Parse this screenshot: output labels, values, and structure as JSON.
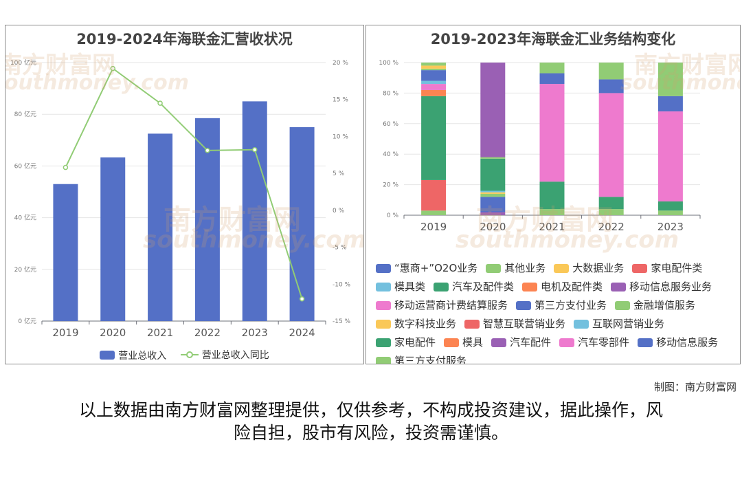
{
  "chart_data": [
    {
      "type": "bar",
      "title": "2019-2024年海联金汇营收状况",
      "categories": [
        "2019",
        "2020",
        "2021",
        "2022",
        "2023",
        "2024"
      ],
      "series": [
        {
          "name": "营业总收入",
          "type": "bar",
          "axis": "left",
          "values": [
            53,
            63.3,
            72.5,
            78.5,
            85,
            75
          ]
        },
        {
          "name": "营业总收入同比",
          "type": "line",
          "axis": "right",
          "values": [
            5.8,
            19.2,
            14.5,
            8.1,
            8.2,
            -12
          ]
        }
      ],
      "yticks_left": [
        "0 亿元",
        "20 亿元",
        "40 亿元",
        "60 亿元",
        "80 亿元",
        "100 亿元"
      ],
      "yticks_right": [
        "-15 %",
        "-10 %",
        "-5 %",
        "0 %",
        "5 %",
        "10 %",
        "15 %",
        "20 %"
      ],
      "ylim_left": [
        0,
        100
      ],
      "ylim_right": [
        -15,
        20
      ],
      "grid": true,
      "legend_position": "bottom",
      "colors": {
        "bar": "#5470c6",
        "line": "#91cc75"
      }
    },
    {
      "type": "bar",
      "stacked": true,
      "title": "2019-2023年海联金汇业务结构变化",
      "categories": [
        "2019",
        "2020",
        "2021",
        "2022",
        "2023"
      ],
      "yticks": [
        "0 %",
        "20 %",
        "40 %",
        "60 %",
        "80 %",
        "100 %"
      ],
      "ylim": [
        0,
        100
      ],
      "grid": true,
      "legend_position": "bottom",
      "series": [
        {
          "name": "第三方支付服务",
          "color": "#91cc75",
          "values": [
            0,
            0,
            0,
            0,
            3
          ]
        },
        {
          "name": "移动信息服务",
          "color": "#5470c6",
          "values": [
            0,
            0,
            0,
            0,
            0
          ]
        },
        {
          "name": "汽车零部件",
          "color": "#ee7ace",
          "values": [
            0,
            0,
            0,
            0,
            0
          ]
        },
        {
          "name": "汽车配件",
          "color": "#9a60b4",
          "values": [
            0,
            0,
            0,
            0,
            0
          ]
        },
        {
          "name": "模具",
          "color": "#fc8452",
          "values": [
            0,
            0,
            0,
            0,
            0
          ]
        },
        {
          "name": "家电配件",
          "color": "#3ba272",
          "values": [
            0,
            0,
            0,
            0,
            6
          ]
        },
        {
          "name": "互联网营销业务",
          "color": "#73c0de",
          "values": [
            0,
            0,
            0,
            0,
            0
          ]
        },
        {
          "name": "智慧互联营销业务",
          "color": "#ee6666",
          "values": [
            0,
            0,
            0,
            0,
            0
          ]
        },
        {
          "name": "数字科技业务",
          "color": "#fac858",
          "values": [
            0,
            0,
            0,
            0,
            0
          ]
        },
        {
          "name": "金融增值服务",
          "color": "#91cc75",
          "values": [
            0,
            0,
            0,
            0,
            0
          ]
        },
        {
          "name": "第三方支付业务",
          "color": "#5470c6",
          "values": [
            0,
            0,
            0,
            0,
            0
          ]
        },
        {
          "name": "移动运营商计费结算服务",
          "color": "#ee7ace",
          "values": [
            0,
            0,
            0,
            0,
            0
          ]
        },
        {
          "name": "移动信息服务业务",
          "color": "#9a60b4",
          "values": [
            0,
            0,
            0,
            0,
            0
          ]
        },
        {
          "name": "电机及配件类",
          "color": "#fc8452",
          "values": [
            0,
            0,
            0,
            0,
            0
          ]
        },
        {
          "name": "汽车及配件类",
          "color": "#3ba272",
          "values": [
            0,
            0,
            0,
            0,
            0
          ]
        },
        {
          "name": "模具类",
          "color": "#73c0de",
          "values": [
            0,
            0,
            0,
            0,
            0
          ]
        },
        {
          "name": "家电配件类",
          "color": "#ee6666",
          "values": [
            0,
            0,
            0,
            0,
            0
          ]
        },
        {
          "name": "大数据业务",
          "color": "#fac858",
          "values": [
            0,
            0,
            0,
            0,
            0
          ]
        },
        {
          "name": "其他业务",
          "color": "#91cc75",
          "values": [
            0,
            0,
            0,
            0,
            0
          ]
        },
        {
          "name": "“惠商+”O2O业务",
          "color": "#5470c6",
          "values": [
            0,
            0,
            0,
            0,
            0
          ]
        }
      ],
      "legend_rows": [
        [
          "“惠商+”O2O业务",
          "其他业务",
          "大数据业务",
          "家电配件类"
        ],
        [
          "模具类",
          "汽车及配件类",
          "电机及配件类",
          "移动信息服务业务"
        ],
        [
          "移动运营商计费结算服务",
          "第三方支付业务",
          "金融增值服务"
        ],
        [
          "数字科技业务",
          "智慧互联营销业务",
          "互联网营销业务"
        ],
        [
          "家电配件",
          "模具",
          "汽车配件",
          "汽车零部件",
          "移动信息服务"
        ],
        [
          "第三方支付服务"
        ]
      ]
    }
  ],
  "stack_breakdown": {
    "2019": [
      [
        "其他业务",
        3
      ],
      [
        "家电配件类",
        20
      ],
      [
        "汽车及配件类",
        55
      ],
      [
        "电机及配件类",
        4
      ],
      [
        "移动运营商计费结算服务",
        4
      ],
      [
        "模具类",
        2
      ],
      [
        "第三方支付业务",
        7
      ],
      [
        "金融增值服务",
        1
      ],
      [
        "大数据业务",
        2
      ],
      [
        "其他业务",
        2
      ]
    ],
    "2020": [
      [
        "移动信息服务业务",
        2
      ],
      [
        "第三方支付业务",
        10
      ],
      [
        "金融增值服务",
        2
      ],
      [
        "数字科技业务",
        1
      ],
      [
        "互联网营销业务",
        1
      ],
      [
        "汽车及配件类",
        21
      ],
      [
        "其他业务",
        1
      ],
      [
        "移动信息服务业务",
        62
      ]
    ],
    "2021": [
      [
        "其他业务",
        4
      ],
      [
        "汽车及配件类",
        18
      ],
      [
        "汽车零部件",
        64
      ],
      [
        "移动信息服务",
        7
      ],
      [
        "第三方支付服务",
        7
      ]
    ],
    "2022": [
      [
        "其他业务",
        4
      ],
      [
        "汽车及配件类",
        8
      ],
      [
        "汽车零部件",
        68
      ],
      [
        "移动信息服务",
        9
      ],
      [
        "第三方支付服务",
        11
      ]
    ],
    "2023": [
      [
        "第三方支付服务",
        3
      ],
      [
        "家电配件",
        6
      ],
      [
        "汽车零部件",
        59
      ],
      [
        "移动信息服务",
        10
      ],
      [
        "第三方支付服务",
        22
      ]
    ]
  },
  "watermark": {
    "cn": "南方财富网",
    "en": "southmoney.com"
  },
  "credit": "制图：南方财富网",
  "disclaimer_line1": "以上数据由南方财富网整理提供，仅供参考，不构成投资建议，据此操作，风",
  "disclaimer_line2": "险自担，股市有风险，投资需谨慎。"
}
